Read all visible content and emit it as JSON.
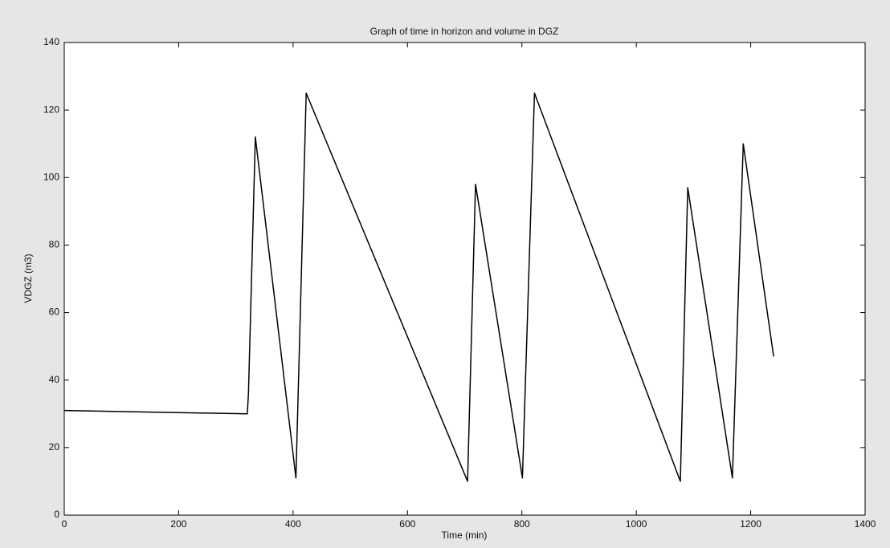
{
  "chart_data": {
    "type": "line",
    "title": "Graph of time in horizon and volume in DGZ",
    "x_label": "Time (min)",
    "y_label": "VDGZ (m3)",
    "x": [
      0,
      320,
      322,
      334,
      405,
      423,
      705,
      719,
      801,
      822,
      1077,
      1090,
      1168,
      1187,
      1240
    ],
    "values": [
      31,
      30,
      36,
      112,
      11,
      125,
      10,
      98,
      11,
      125,
      10,
      97,
      11,
      110,
      47
    ],
    "color": "#000000",
    "xlim": [
      0,
      1400
    ],
    "xticks": [
      0,
      200,
      400,
      600,
      800,
      1000,
      1200,
      1400
    ],
    "ylim": [
      0,
      140
    ],
    "yticks": [
      0,
      20,
      40,
      60,
      80,
      100,
      120,
      140
    ],
    "grid": false
  }
}
